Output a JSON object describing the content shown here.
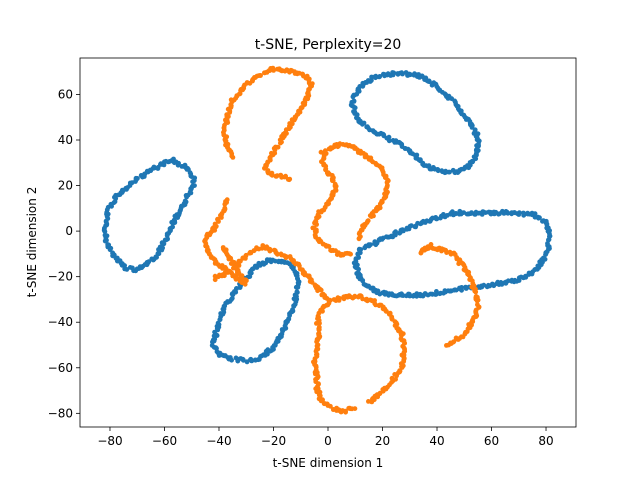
{
  "chart_data": {
    "type": "scatter",
    "title": "t-SNE, Perplexity=20",
    "xlabel": "t-SNE dimension 1",
    "ylabel": "t-SNE dimension 2",
    "xlim": [
      -91,
      91
    ],
    "ylim": [
      -86,
      76
    ],
    "xticks": [
      -80,
      -60,
      -40,
      -20,
      0,
      20,
      40,
      60,
      80
    ],
    "yticks": [
      -80,
      -60,
      -40,
      -20,
      0,
      20,
      40,
      60
    ],
    "grid": false,
    "legend": "none",
    "colors": {
      "blue": "#1f77b4",
      "orange": "#ff7f0e"
    },
    "series": [
      {
        "color": "#1f77b4",
        "clusters": [
          [
            [
              -74,
              -16
            ],
            [
              -78,
              -12
            ],
            [
              -81,
              -6
            ],
            [
              -82,
              0
            ],
            [
              -81,
              8
            ],
            [
              -79,
              13
            ],
            [
              -75,
              18
            ],
            [
              -70,
              23
            ],
            [
              -65,
              27
            ],
            [
              -60,
              30
            ],
            [
              -57,
              31
            ],
            [
              -54,
              29
            ],
            [
              -51,
              27
            ],
            [
              -49,
              22
            ],
            [
              -50,
              18
            ],
            [
              -53,
              12
            ],
            [
              -56,
              6
            ],
            [
              -58,
              1
            ],
            [
              -60,
              -5
            ],
            [
              -63,
              -11
            ],
            [
              -67,
              -15
            ],
            [
              -71,
              -17
            ]
          ],
          [
            [
              -41,
              -44
            ],
            [
              -42,
              -50
            ],
            [
              -40,
              -54
            ],
            [
              -36,
              -56
            ],
            [
              -30,
              -57
            ],
            [
              -26,
              -56
            ],
            [
              -23,
              -54
            ],
            [
              -20,
              -51
            ],
            [
              -17,
              -45
            ],
            [
              -14,
              -38
            ],
            [
              -12,
              -30
            ],
            [
              -11,
              -22
            ],
            [
              -13,
              -15
            ],
            [
              -17,
              -13
            ],
            [
              -22,
              -13
            ],
            [
              -27,
              -16
            ],
            [
              -31,
              -22
            ],
            [
              -35,
              -28
            ],
            [
              -38,
              -34
            ],
            [
              -40,
              -39
            ]
          ],
          [
            [
              42,
              26
            ],
            [
              46,
              26
            ],
            [
              50,
              27
            ],
            [
              53,
              30
            ],
            [
              55,
              35
            ],
            [
              55,
              41
            ],
            [
              53,
              46
            ],
            [
              50,
              51
            ],
            [
              46,
              57
            ],
            [
              41,
              62
            ],
            [
              36,
              67
            ],
            [
              30,
              69
            ],
            [
              24,
              69
            ],
            [
              18,
              68
            ],
            [
              13,
              65
            ],
            [
              10,
              60
            ],
            [
              9,
              55
            ],
            [
              11,
              49
            ],
            [
              15,
              45
            ],
            [
              20,
              42
            ],
            [
              25,
              39
            ],
            [
              29,
              36
            ],
            [
              33,
              32
            ],
            [
              37,
              28
            ]
          ],
          [
            [
              68,
              -22
            ],
            [
              72,
              -20
            ],
            [
              76,
              -17
            ],
            [
              79,
              -13
            ],
            [
              81,
              -7
            ],
            [
              81,
              -1
            ],
            [
              80,
              4
            ],
            [
              76,
              7
            ],
            [
              70,
              8
            ],
            [
              62,
              8
            ],
            [
              54,
              8
            ],
            [
              46,
              8
            ],
            [
              41,
              6
            ],
            [
              36,
              4
            ],
            [
              31,
              2
            ],
            [
              27,
              0
            ],
            [
              21,
              -3
            ],
            [
              16,
              -6
            ],
            [
              12,
              -8
            ],
            [
              10,
              -13
            ],
            [
              11,
              -19
            ],
            [
              14,
              -24
            ],
            [
              19,
              -27
            ],
            [
              25,
              -28
            ],
            [
              31,
              -28
            ],
            [
              35,
              -28
            ]
          ]
        ]
      },
      {
        "color": "#ff7f0e",
        "clusters": [
          [
            [
              -37,
              14
            ],
            [
              -38,
              10
            ],
            [
              -40,
              5
            ],
            [
              -42,
              1
            ],
            [
              -45,
              -4
            ],
            [
              -44,
              -10
            ],
            [
              -40,
              -15
            ],
            [
              -36,
              -18
            ],
            [
              -33,
              -21
            ],
            [
              -30,
              -23
            ],
            [
              -36,
              -12
            ],
            [
              -39,
              -6
            ]
          ],
          [
            [
              -14,
              22
            ],
            [
              -16,
              24
            ],
            [
              -20,
              24
            ],
            [
              -23,
              27
            ],
            [
              -21,
              33
            ],
            [
              -18,
              38
            ],
            [
              -15,
              44
            ],
            [
              -12,
              50
            ],
            [
              -8,
              58
            ],
            [
              -6,
              64
            ],
            [
              -8,
              68
            ],
            [
              -13,
              70
            ],
            [
              -20,
              71
            ],
            [
              -26,
              68
            ],
            [
              -31,
              63
            ],
            [
              -35,
              57
            ],
            [
              -37,
              50
            ],
            [
              -38,
              43
            ],
            [
              -37,
              37
            ],
            [
              -35,
              32
            ]
          ],
          [
            [
              0,
              -30
            ],
            [
              -3,
              -26
            ],
            [
              -6,
              -22
            ],
            [
              -10,
              -16
            ],
            [
              -14,
              -12
            ],
            [
              -19,
              -9
            ],
            [
              -24,
              -7
            ],
            [
              -27,
              -8
            ],
            [
              -29,
              -10
            ],
            [
              -31,
              -12
            ],
            [
              -34,
              -16
            ],
            [
              -38,
              -19
            ],
            [
              -42,
              -21
            ]
          ],
          [
            [
              8,
              -10
            ],
            [
              4,
              -10
            ],
            [
              0,
              -7
            ],
            [
              -4,
              -3
            ],
            [
              -5,
              2
            ],
            [
              -3,
              8
            ],
            [
              1,
              14
            ],
            [
              3,
              19
            ],
            [
              1,
              24
            ],
            [
              -2,
              29
            ],
            [
              -2,
              34
            ],
            [
              2,
              37
            ],
            [
              6,
              38
            ],
            [
              10,
              36
            ],
            [
              15,
              32
            ],
            [
              19,
              28
            ],
            [
              22,
              22
            ],
            [
              21,
              15
            ],
            [
              17,
              8
            ],
            [
              13,
              2
            ],
            [
              11,
              -4
            ]
          ],
          [
            [
              44,
              -50
            ],
            [
              47,
              -48
            ],
            [
              51,
              -44
            ],
            [
              54,
              -38
            ],
            [
              55,
              -32
            ],
            [
              54,
              -26
            ],
            [
              52,
              -20
            ],
            [
              50,
              -16
            ],
            [
              46,
              -10
            ],
            [
              41,
              -8
            ],
            [
              37,
              -7
            ],
            [
              34,
              -9
            ],
            [
              38,
              -6
            ]
          ],
          [
            [
              15,
              -75
            ],
            [
              19,
              -72
            ],
            [
              23,
              -67
            ],
            [
              27,
              -60
            ],
            [
              28,
              -52
            ],
            [
              27,
              -45
            ],
            [
              24,
              -39
            ],
            [
              21,
              -34
            ],
            [
              17,
              -31
            ],
            [
              12,
              -29
            ],
            [
              8,
              -29
            ],
            [
              3,
              -30
            ],
            [
              -1,
              -32
            ],
            [
              -4,
              -38
            ],
            [
              -3,
              -45
            ],
            [
              -4,
              -51
            ],
            [
              -5,
              -58
            ],
            [
              -4,
              -64
            ],
            [
              -4,
              -70
            ],
            [
              -2,
              -75
            ],
            [
              2,
              -78
            ],
            [
              6,
              -79
            ],
            [
              10,
              -77
            ]
          ]
        ]
      }
    ]
  }
}
